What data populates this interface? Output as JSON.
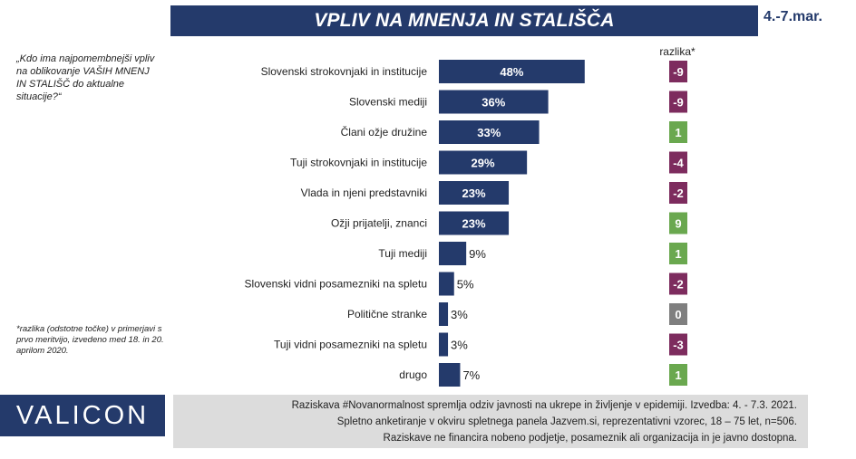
{
  "header": {
    "title": "VPLIV NA MNENJA IN STALIŠČA",
    "date": "4.-7.mar."
  },
  "question": "„Kdo ima najpomembnejši vpliv na oblikovanje VAŠIH MNENJ IN STALIŠČ do aktualne situacije?“",
  "footnote": "*razlika (odstotne točke) v primerjavi s prvo meritvijo, izvedeno med 18. in 20. aprilom 2020.",
  "logo": "VALICON",
  "info_lines": [
    "Raziskava #Novanormalnost spremlja odziv javnosti na ukrepe in življenje v epidemiji.  Izvedba: 4. - 7.3. 2021.",
    "Spletno anketiranje v okviru spletnega panela Jazvem.si, reprezentativni vzorec, 18 – 75 let, n=506.",
    "Raziskave ne financira nobeno podjetje, posameznik ali organizacija in je javno dostopna."
  ],
  "colors": {
    "bar": "#243a6b",
    "negative": "#7d2c5e",
    "positive": "#6aa84f",
    "zero": "#7f7f7f"
  },
  "chart_data": {
    "type": "bar",
    "orientation": "horizontal",
    "title": "VPLIV NA MNENJA IN STALIŠČA",
    "categories": [
      "Slovenski strokovnjaki in institucije",
      "Slovenski mediji",
      "Člani ožje družine",
      "Tuji strokovnjaki in institucije",
      "Vlada in njeni predstavniki",
      "Ožji prijatelji, znanci",
      "Tuji mediji",
      "Slovenski vidni posamezniki na spletu",
      "Politične stranke",
      "Tuji vidni posamezniki na spletu",
      "drugo"
    ],
    "values": [
      48,
      36,
      33,
      29,
      23,
      23,
      9,
      5,
      3,
      3,
      7
    ],
    "value_labels": [
      "48%",
      "36%",
      "33%",
      "29%",
      "23%",
      "23%",
      "9%",
      "5%",
      "3%",
      "3%",
      "7%"
    ],
    "diff_header": "razlika*",
    "diff": [
      -9,
      -9,
      1,
      -4,
      -2,
      9,
      1,
      -2,
      0,
      -3,
      1
    ],
    "diff_labels": [
      "-9",
      "-9",
      "1",
      "-4",
      "-2",
      "9",
      "1",
      "-2",
      "0",
      "-3",
      "1"
    ],
    "xlim": [
      0,
      100
    ]
  }
}
